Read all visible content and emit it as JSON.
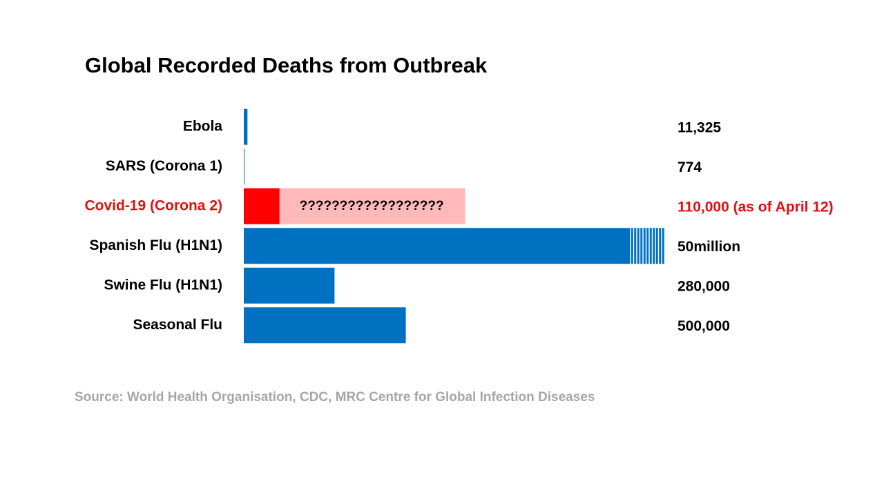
{
  "chart_data": {
    "type": "bar",
    "orientation": "horizontal",
    "title": "Global Recorded Deaths from Outbreak",
    "categories": [
      "Ebola",
      "SARS (Corona 1)",
      "Covid-19 (Corona 2)",
      "Spanish Flu (H1N1)",
      "Swine Flu (H1N1)",
      "Seasonal Flu"
    ],
    "values": [
      11325,
      774,
      110000,
      50000000,
      280000,
      500000
    ],
    "value_labels": [
      "11,325",
      "774",
      "110,000 (as of April 12)",
      "50million",
      "280,000",
      "500,000"
    ],
    "colors": [
      "#0070c0",
      "#0070c0",
      "#ff0000",
      "#0070c0",
      "#0070c0",
      "#0070c0"
    ],
    "label_colors": [
      "#000000",
      "#000000",
      "#e01010",
      "#000000",
      "#000000",
      "#000000"
    ],
    "xlim": [
      0,
      1300000
    ],
    "annotation": {
      "text": "??????????????????",
      "color": "#ffb9b9"
    },
    "source": "Source: World Health Organisation, CDC, MRC Centre for Global Infection Diseases"
  }
}
